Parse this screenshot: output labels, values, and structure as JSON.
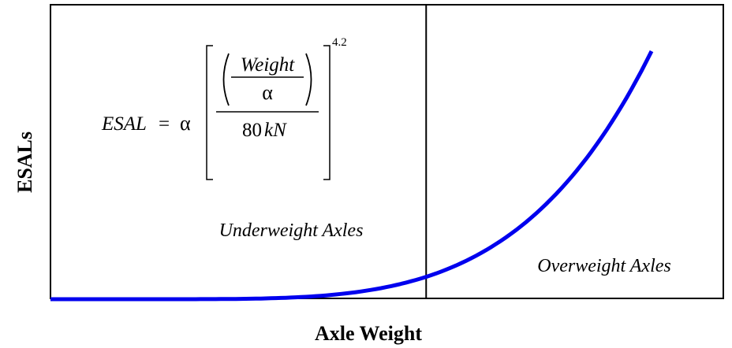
{
  "chart_data": {
    "type": "line",
    "title": "",
    "xlabel": "Axle Weight",
    "ylabel": "ESALs",
    "x_ticks": [],
    "y_ticks": [],
    "grid": false,
    "legend": "none",
    "curve_exponent": 4.2,
    "series": [
      {
        "x": [
          0.0,
          0.1,
          0.2,
          0.3,
          0.4,
          0.5,
          0.6,
          0.7,
          0.8,
          0.9,
          1.0
        ],
        "y": [
          0.0,
          0.0,
          0.0009,
          0.0064,
          0.0213,
          0.0542,
          0.1171,
          0.224,
          0.3916,
          0.6427,
          1.0
        ],
        "color": "#0000ee"
      }
    ],
    "divider_x": 0.625,
    "regions": [
      {
        "label": "Underweight Axles"
      },
      {
        "label": "Overweight Axles"
      }
    ],
    "formula": {
      "lhs": "ESAL",
      "equals": "=",
      "alpha": "α",
      "numerator_var": "Weight",
      "denominator_alpha": "α",
      "denominator_value": "80",
      "denominator_unit": "kN",
      "exponent": "4.2"
    }
  }
}
